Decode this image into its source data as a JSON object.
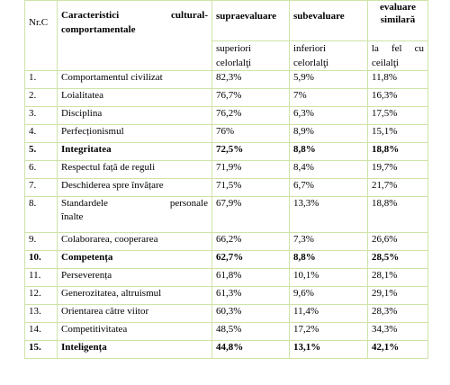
{
  "header": {
    "nr": "Nr.C",
    "characteristics": "Caracteristici cultural-comportamentale",
    "characteristics_line1": "Caracteristici cultural-",
    "characteristics_line2": "comportamentale",
    "col_over": "supraevaluare",
    "col_under": "subevaluare",
    "col_similar": "evaluare similară",
    "col_similar_line1": "evaluare",
    "col_similar_line2": "similară",
    "sub_over": "superiori celorlalți",
    "sub_over_line1": "superiori",
    "sub_over_line2": "celorlalţi",
    "sub_under": "inferiori celorlalți",
    "sub_under_line1": "inferiori",
    "sub_under_line2": "celorlalţi",
    "sub_similar": "la fel cu ceilalți",
    "sub_similar_line1": "la fel cu",
    "sub_similar_line2": "ceilalţi"
  },
  "rows": [
    {
      "nr": "1.",
      "name": "Comportamentul civilizat",
      "over": "82,3%",
      "under": "5,9%",
      "similar": "11,8%",
      "bold": false
    },
    {
      "nr": "2.",
      "name": "Loialitatea",
      "over": "76,7%",
      "under": "7%",
      "similar": "16,3%",
      "bold": false
    },
    {
      "nr": "3.",
      "name": "Disciplina",
      "over": "76,2%",
      "under": "6,3%",
      "similar": "17,5%",
      "bold": false
    },
    {
      "nr": "4.",
      "name": "Perfecționismul",
      "over": "76%",
      "under": "8,9%",
      "similar": "15,1%",
      "bold": false
    },
    {
      "nr": "5.",
      "name": "Integritatea",
      "over": "72,5%",
      "under": "8,8%",
      "similar": "18,8%",
      "bold": true
    },
    {
      "nr": "6.",
      "name": "Respectul față de reguli",
      "over": "71,9%",
      "under": "8,4%",
      "similar": "19,7%",
      "bold": false
    },
    {
      "nr": "7.",
      "name": "Deschiderea spre învățare",
      "over": "71,5%",
      "under": "6,7%",
      "similar": "21,7%",
      "bold": false
    },
    {
      "nr": "8.",
      "name_line1": "Standardele personale",
      "name_line2": "înalte",
      "over": "67,9%",
      "under": "13,3%",
      "similar": "18,8%",
      "bold": false
    },
    {
      "nr": "9.",
      "name": "Colaborarea, cooperarea",
      "over": "66,2%",
      "under": "7,3%",
      "similar": "26,6%",
      "bold": false
    },
    {
      "nr": "10.",
      "name": "Competența",
      "over": "62,7%",
      "under": "8,8%",
      "similar": "28,5%",
      "bold": true
    },
    {
      "nr": "11.",
      "name": "Perseverența",
      "over": "61,8%",
      "under": "10,1%",
      "similar": "28,1%",
      "bold": false
    },
    {
      "nr": "12.",
      "name": "Generozitatea, altruismul",
      "over": "61,3%",
      "under": "9,6%",
      "similar": "29,1%",
      "bold": false
    },
    {
      "nr": "13.",
      "name": "Orientarea către viitor",
      "over": "60,3%",
      "under": "11,4%",
      "similar": "28,3%",
      "bold": false
    },
    {
      "nr": "14.",
      "name": "Competitivitatea",
      "over": "48,5%",
      "under": "17,2%",
      "similar": "34,3%",
      "bold": false
    },
    {
      "nr": "15.",
      "name": "Inteligența",
      "over": "44,8%",
      "under": "13,1%",
      "similar": "42,1%",
      "bold": true
    }
  ]
}
